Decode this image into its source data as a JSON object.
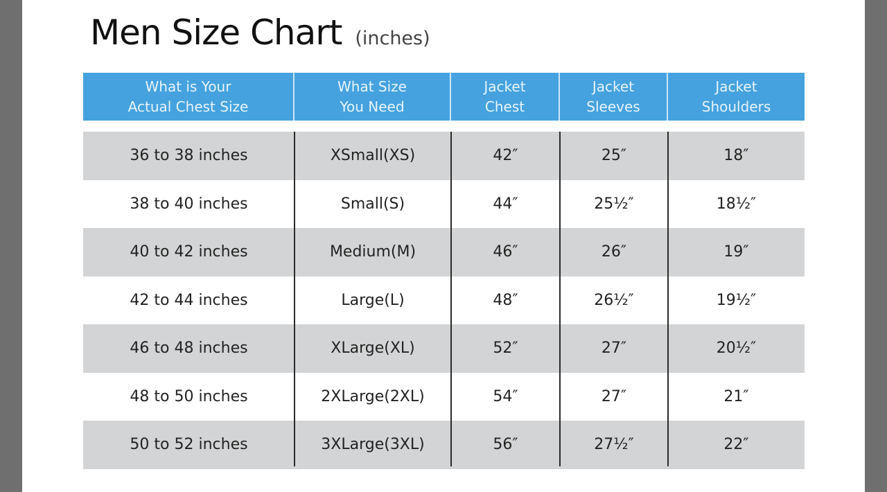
{
  "title": "Men Size Chart",
  "unit": "(inches)",
  "colors": {
    "header": "#45a2de",
    "stripe": "#d3d4d5"
  },
  "headers": [
    "What is Your\nActual Chest Size",
    "What Size\nYou Need",
    "Jacket\nChest",
    "Jacket\nSleeves",
    "Jacket\nShoulders"
  ],
  "rows": [
    [
      "36 to 38 inches",
      "XSmall(XS)",
      "42″",
      "25″",
      "18″"
    ],
    [
      "38 to 40 inches",
      "Small(S)",
      "44″",
      "25½″",
      "18½″"
    ],
    [
      "40 to 42 inches",
      "Medium(M)",
      "46″",
      "26″",
      "19″"
    ],
    [
      "42 to 44 inches",
      "Large(L)",
      "48″",
      "26½″",
      "19½″"
    ],
    [
      "46 to 48 inches",
      "XLarge(XL)",
      "52″",
      "27″",
      "20½″"
    ],
    [
      "48 to 50 inches",
      "2XLarge(2XL)",
      "54″",
      "27″",
      "21″"
    ],
    [
      "50 to 52 inches",
      "3XLarge(3XL)",
      "56″",
      "27½″",
      "22″"
    ]
  ]
}
